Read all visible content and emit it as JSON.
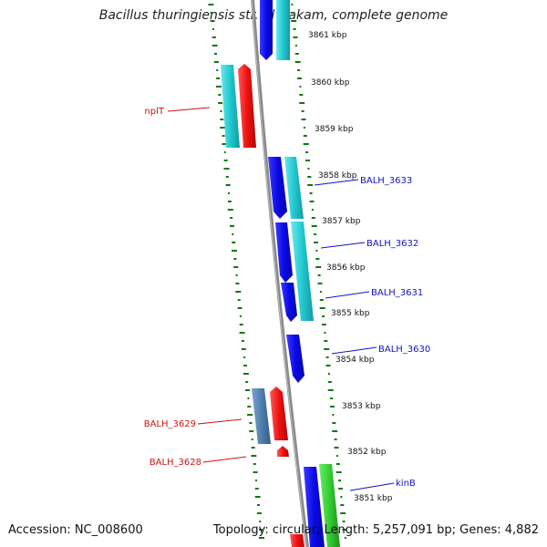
{
  "title": "Bacillus thuringiensis str. Al Hakam, complete genome",
  "footer": {
    "accession": "Accession: NC_008600",
    "stats": "Topology: circular; Length: 5,257,091 bp; Genes: 4,882"
  },
  "colors": {
    "forward_cds": "#0a0ae6",
    "reverse_cds": "#22c8d0",
    "trna": "#ee1111",
    "steel_cds": "#4f7fb0",
    "green_cds": "#33cc33",
    "gc_skew_dots": "#0a7a0a",
    "backbone": "#888888",
    "forward_label": "#1111cc",
    "reverse_label": "#cc1111"
  },
  "ticks": [
    "3861 kbp",
    "3860 kbp",
    "3859 kbp",
    "3858 kbp",
    "3857 kbp",
    "3856 kbp",
    "3855 kbp",
    "3854 kbp",
    "3853 kbp",
    "3852 kbp",
    "3851 kbp"
  ],
  "gene_labels": [
    {
      "text": "nplT",
      "strand": "reverse"
    },
    {
      "text": "BALH_3633",
      "strand": "forward"
    },
    {
      "text": "BALH_3632",
      "strand": "forward"
    },
    {
      "text": "BALH_3631",
      "strand": "forward"
    },
    {
      "text": "BALH_3630",
      "strand": "forward"
    },
    {
      "text": "BALH_3629",
      "strand": "reverse"
    },
    {
      "text": "BALH_3628",
      "strand": "reverse"
    },
    {
      "text": "kinB",
      "strand": "forward"
    }
  ]
}
